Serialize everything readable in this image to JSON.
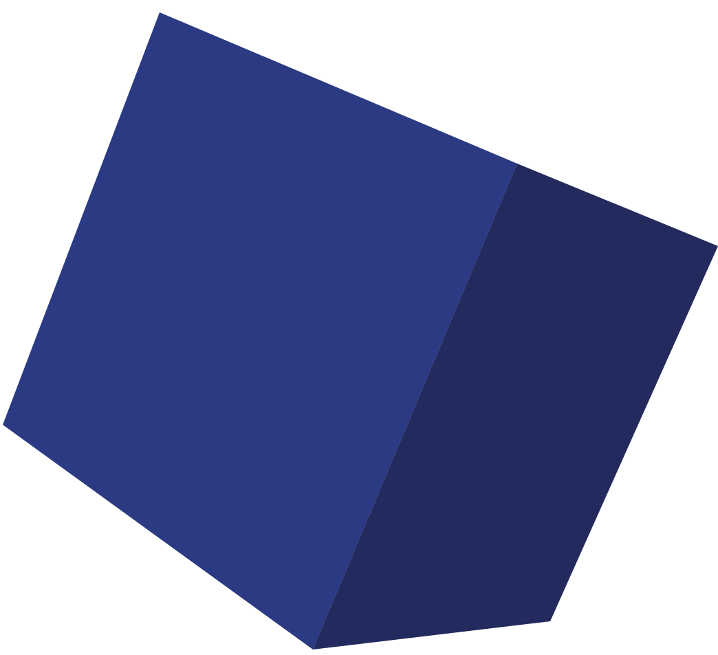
{
  "scene": {
    "subject": "voxel-rendered-cube",
    "colors": {
      "background": "#ffffff",
      "front_face": "#2b3a82",
      "front_face_dark": "#27367a",
      "side_face": "#232a5e",
      "side_face_light": "#283370",
      "band_light_blue": "#7f9ed6",
      "band_pale": "#c9cfe2",
      "band_peach": "#e8b49a",
      "band_salmon": "#d98870",
      "band_red": "#b5262b",
      "band_dark_red": "#8b0f1c"
    }
  }
}
